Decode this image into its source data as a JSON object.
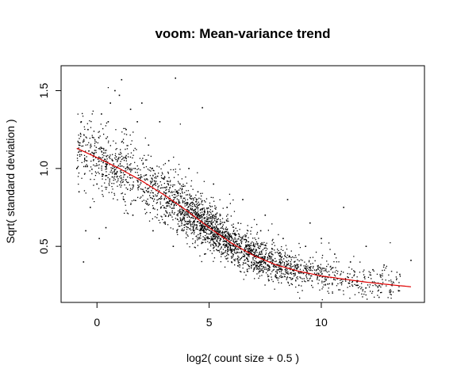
{
  "chart_data": {
    "type": "scatter",
    "title": "voom: Mean-variance trend",
    "xlabel": "log2( count size + 0.5 )",
    "ylabel": "Sqrt( standard deviation )",
    "xlim": [
      -1.6,
      14.6
    ],
    "ylim": [
      0.14,
      1.66
    ],
    "x_ticks": [
      0,
      5,
      10
    ],
    "y_ticks": [
      0.5,
      1.0,
      1.5
    ],
    "x_tick_labels": [
      "0",
      "5",
      "10"
    ],
    "y_tick_labels": [
      "0.5",
      "1.0",
      "1.5"
    ],
    "grid": false,
    "legend": "none",
    "point_color": "#000000",
    "trend_color": "#e00000",
    "series": [
      {
        "kind": "points",
        "density": "dense cloud of roughly 10000 points following the trend curve",
        "points": [
          [
            -0.9,
            1.0
          ],
          [
            -0.8,
            1.15
          ],
          [
            -0.8,
            0.85
          ],
          [
            -0.7,
            1.3
          ],
          [
            -0.6,
            0.4
          ],
          [
            -0.5,
            0.6
          ],
          [
            -0.4,
            1.25
          ],
          [
            -0.3,
            0.75
          ],
          [
            -0.2,
            1.2
          ],
          [
            0.0,
            0.9
          ],
          [
            0.1,
            0.55
          ],
          [
            0.2,
            1.35
          ],
          [
            0.3,
            1.1
          ],
          [
            0.4,
            0.62
          ],
          [
            0.5,
            1.3
          ],
          [
            0.6,
            1.42
          ],
          [
            0.7,
            1.05
          ],
          [
            0.8,
            1.5
          ],
          [
            0.9,
            0.95
          ],
          [
            1.0,
            1.47
          ],
          [
            1.1,
            1.57
          ],
          [
            1.2,
            0.8
          ],
          [
            1.3,
            1.25
          ],
          [
            1.5,
            1.38
          ],
          [
            1.6,
            0.7
          ],
          [
            1.7,
            1.0
          ],
          [
            1.8,
            1.3
          ],
          [
            2.0,
            1.42
          ],
          [
            2.1,
            0.85
          ],
          [
            2.3,
            1.15
          ],
          [
            2.5,
            0.6
          ],
          [
            2.7,
            0.95
          ],
          [
            2.8,
            1.3
          ],
          [
            3.0,
            0.75
          ],
          [
            3.2,
            1.05
          ],
          [
            3.4,
            0.5
          ],
          [
            3.5,
            1.58
          ],
          [
            3.7,
            0.9
          ],
          [
            3.9,
            0.7
          ],
          [
            4.1,
            1.0
          ],
          [
            4.3,
            0.6
          ],
          [
            4.5,
            0.85
          ],
          [
            4.7,
            1.39
          ],
          [
            4.8,
            0.45
          ],
          [
            5.0,
            0.7
          ],
          [
            5.2,
            0.9
          ],
          [
            5.5,
            0.55
          ],
          [
            5.8,
            0.75
          ],
          [
            6.0,
            0.4
          ],
          [
            6.3,
            0.65
          ],
          [
            6.5,
            0.8
          ],
          [
            6.8,
            0.5
          ],
          [
            7.0,
            0.35
          ],
          [
            7.3,
            0.6
          ],
          [
            7.5,
            0.7
          ],
          [
            7.8,
            0.45
          ],
          [
            8.0,
            0.3
          ],
          [
            8.3,
            0.55
          ],
          [
            8.5,
            0.8
          ],
          [
            8.8,
            0.4
          ],
          [
            9.0,
            0.25
          ],
          [
            9.3,
            0.5
          ],
          [
            9.5,
            0.65
          ],
          [
            9.8,
            0.35
          ],
          [
            10.0,
            0.55
          ],
          [
            10.3,
            0.3
          ],
          [
            10.6,
            0.45
          ],
          [
            11.0,
            0.75
          ],
          [
            11.3,
            0.4
          ],
          [
            11.6,
            0.25
          ],
          [
            12.0,
            0.5
          ],
          [
            12.3,
            0.35
          ],
          [
            12.8,
            0.38
          ],
          [
            13.5,
            0.32
          ],
          [
            14.0,
            0.41
          ]
        ]
      },
      {
        "kind": "line",
        "x": [
          -0.9,
          0,
          1,
          2,
          3,
          4,
          5,
          6,
          7,
          8,
          9,
          10,
          11,
          12,
          13,
          14
        ],
        "y": [
          1.13,
          1.07,
          1.0,
          0.92,
          0.83,
          0.73,
          0.62,
          0.52,
          0.44,
          0.38,
          0.34,
          0.31,
          0.29,
          0.27,
          0.255,
          0.24
        ]
      }
    ]
  }
}
